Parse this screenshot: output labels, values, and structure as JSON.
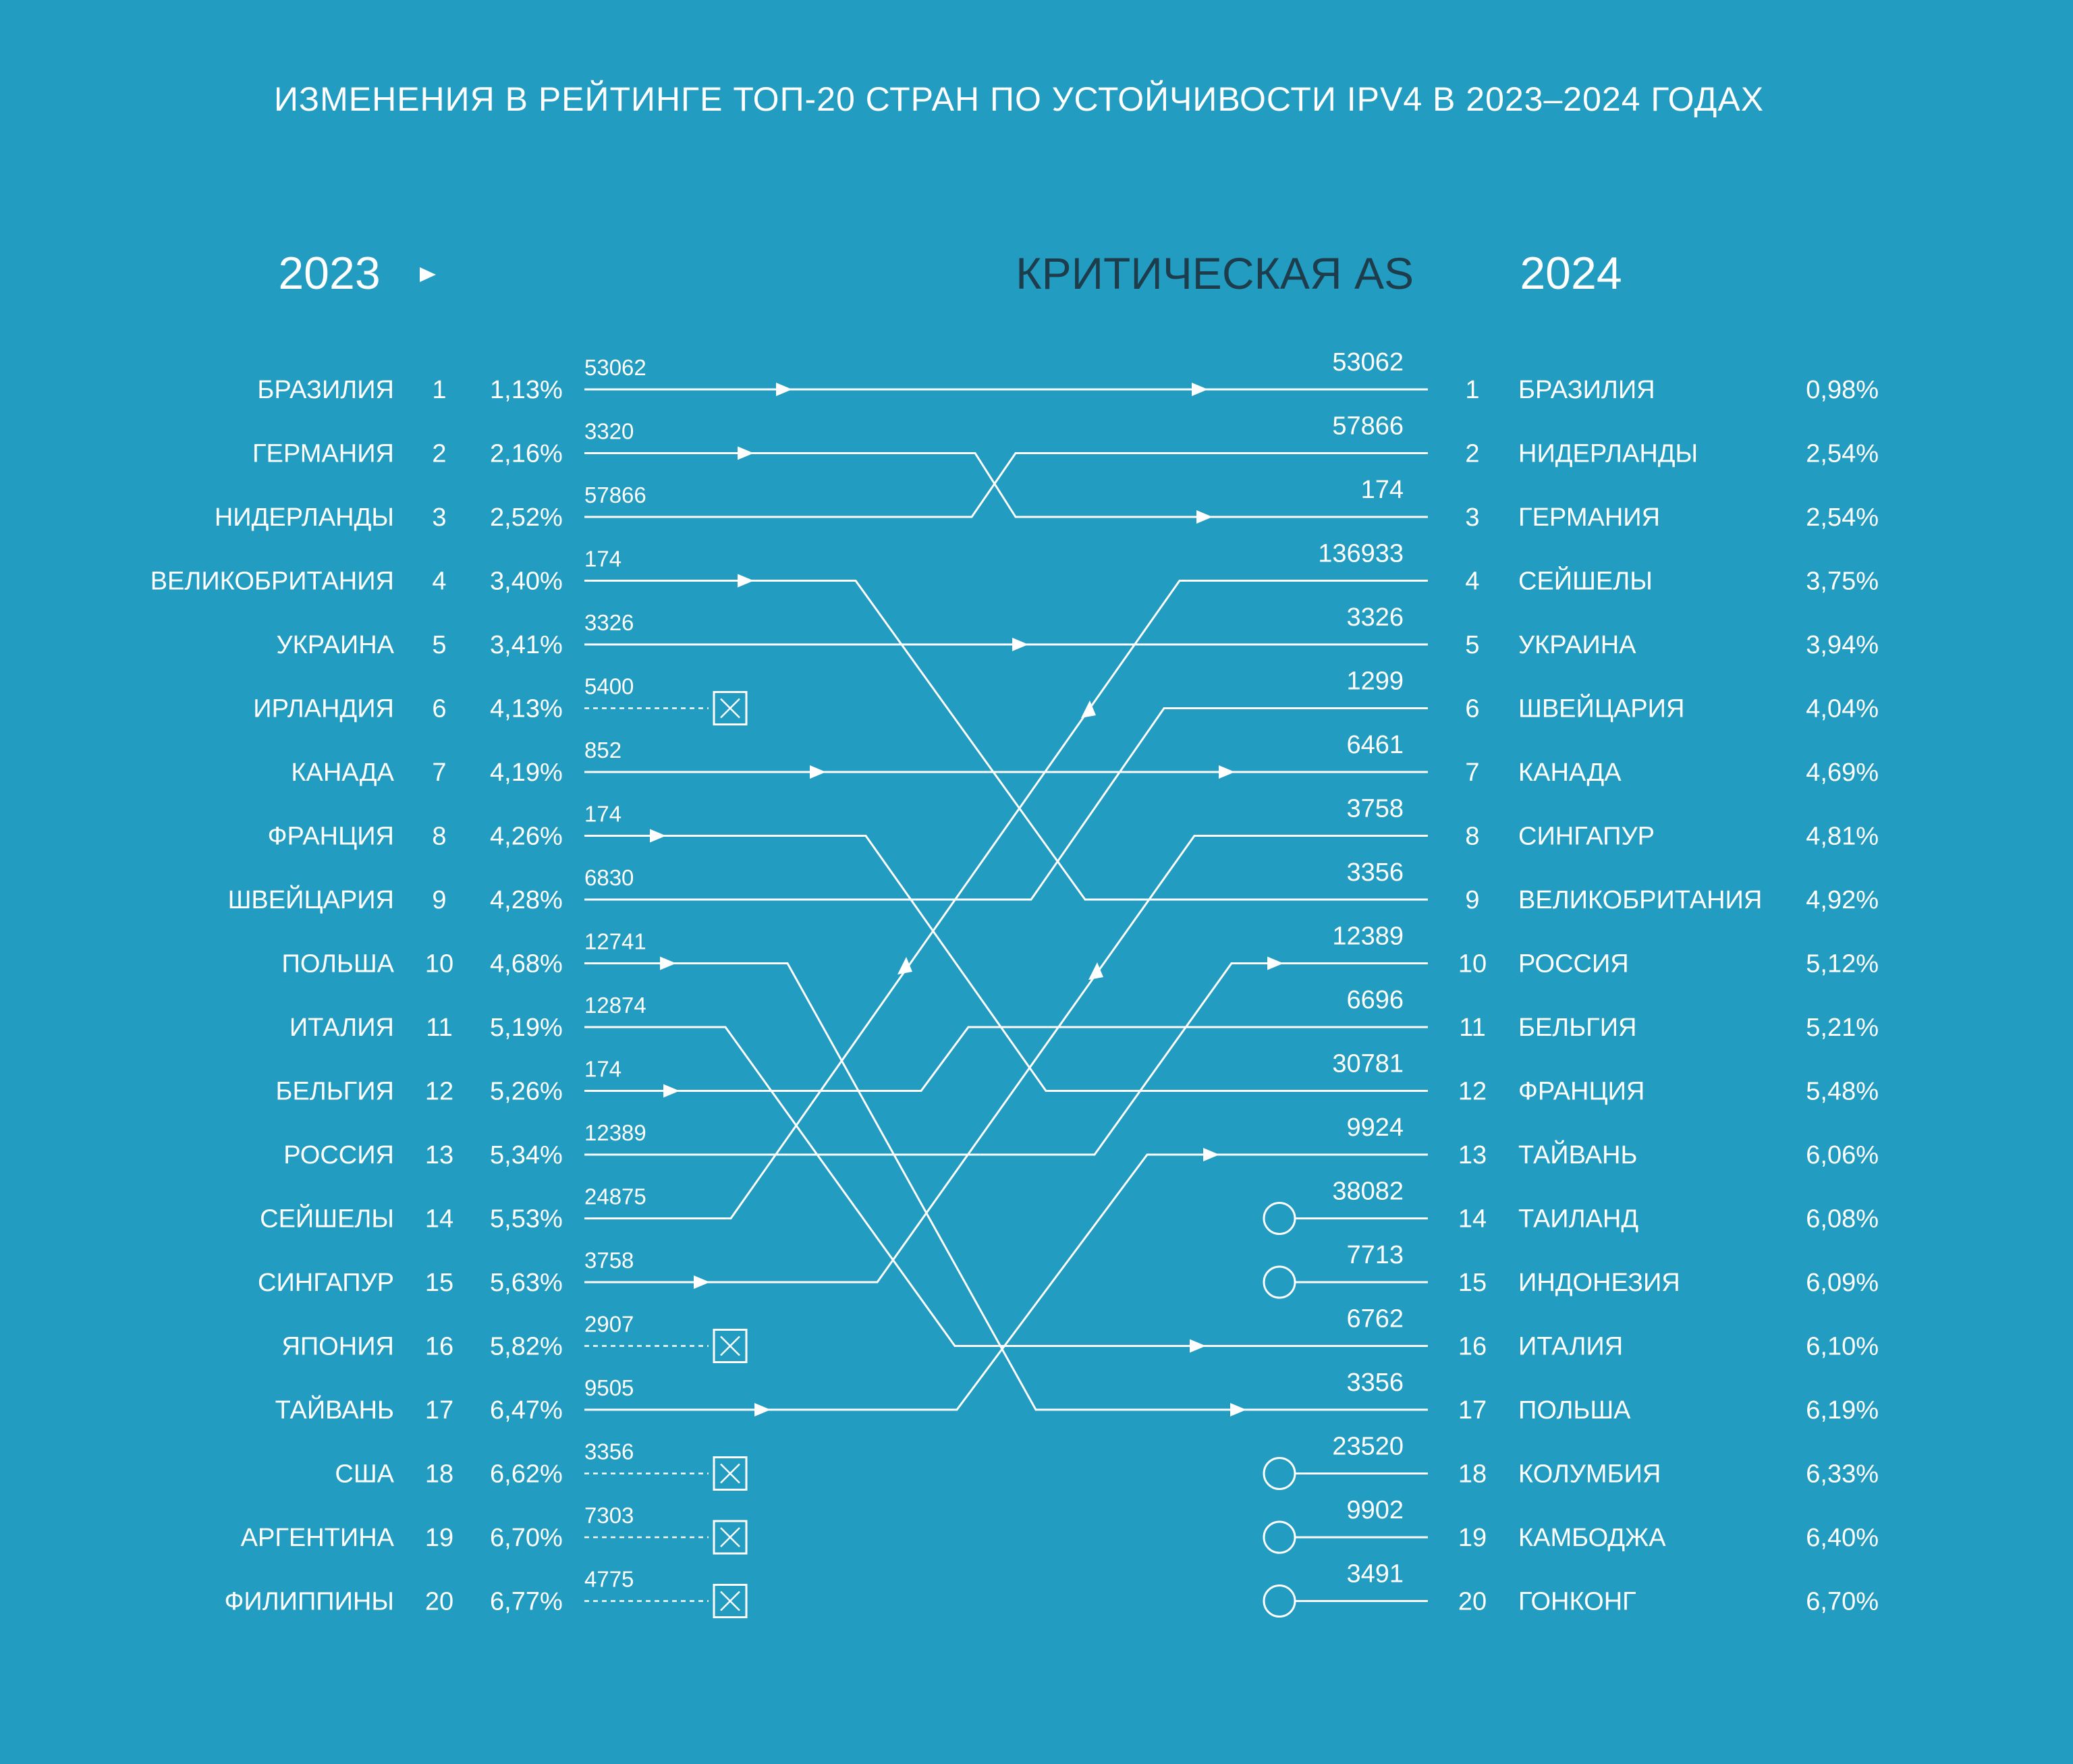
{
  "title": "ИЗМЕНЕНИЯ В РЕЙТИНГЕ ТОП-20 СТРАН ПО УСТОЙЧИВОСТИ IPV4 В 2023–2024 ГОДАХ",
  "header_left": "2023",
  "header_middle": "КРИТИЧЕСКАЯ AS",
  "header_right": "2024",
  "colors": {
    "background": "#229cc0",
    "foreground": "#ffffff",
    "dark_text": "#1d3d4c"
  },
  "chart_data": {
    "type": "bump",
    "title": "ИЗМЕНЕНИЯ В РЕЙТИНГЕ ТОП-20 СТРАН ПО УСТОЙЧИВОСТИ IPV4 В 2023–2024 ГОДАХ",
    "left_year": "2023",
    "right_year": "2024",
    "middle_label": "КРИТИЧЕСКАЯ AS",
    "ranking_2023": [
      {
        "rank": 1,
        "country": "БРАЗИЛИЯ",
        "pct": "1,13%",
        "as": "53062",
        "to": 1
      },
      {
        "rank": 2,
        "country": "ГЕРМАНИЯ",
        "pct": "2,16%",
        "as": "3320",
        "to": 3
      },
      {
        "rank": 3,
        "country": "НИДЕРЛАНДЫ",
        "pct": "2,52%",
        "as": "57866",
        "to": 2
      },
      {
        "rank": 4,
        "country": "ВЕЛИКОБРИТАНИЯ",
        "pct": "3,40%",
        "as": "174",
        "to": 9
      },
      {
        "rank": 5,
        "country": "УКРАИНА",
        "pct": "3,41%",
        "as": "3326",
        "to": 5
      },
      {
        "rank": 6,
        "country": "ИРЛАНДИЯ",
        "pct": "4,13%",
        "as": "5400",
        "to": null
      },
      {
        "rank": 7,
        "country": "КАНАДА",
        "pct": "4,19%",
        "as": "852",
        "to": 7
      },
      {
        "rank": 8,
        "country": "ФРАНЦИЯ",
        "pct": "4,26%",
        "as": "174",
        "to": 12
      },
      {
        "rank": 9,
        "country": "ШВЕЙЦАРИЯ",
        "pct": "4,28%",
        "as": "6830",
        "to": 6
      },
      {
        "rank": 10,
        "country": "ПОЛЬША",
        "pct": "4,68%",
        "as": "12741",
        "to": 17
      },
      {
        "rank": 11,
        "country": "ИТАЛИЯ",
        "pct": "5,19%",
        "as": "12874",
        "to": 16
      },
      {
        "rank": 12,
        "country": "БЕЛЬГИЯ",
        "pct": "5,26%",
        "as": "174",
        "to": 11
      },
      {
        "rank": 13,
        "country": "РОССИЯ",
        "pct": "5,34%",
        "as": "12389",
        "to": 10
      },
      {
        "rank": 14,
        "country": "СЕЙШЕЛЫ",
        "pct": "5,53%",
        "as": "24875",
        "to": 4
      },
      {
        "rank": 15,
        "country": "СИНГАПУР",
        "pct": "5,63%",
        "as": "3758",
        "to": 8
      },
      {
        "rank": 16,
        "country": "ЯПОНИЯ",
        "pct": "5,82%",
        "as": "2907",
        "to": null
      },
      {
        "rank": 17,
        "country": "ТАЙВАНЬ",
        "pct": "6,47%",
        "as": "9505",
        "to": 13
      },
      {
        "rank": 18,
        "country": "США",
        "pct": "6,62%",
        "as": "3356",
        "to": null
      },
      {
        "rank": 19,
        "country": "АРГЕНТИНА",
        "pct": "6,70%",
        "as": "7303",
        "to": null
      },
      {
        "rank": 20,
        "country": "ФИЛИППИНЫ",
        "pct": "6,77%",
        "as": "4775",
        "to": null
      }
    ],
    "ranking_2024": [
      {
        "rank": 1,
        "country": "БРАЗИЛИЯ",
        "pct": "0,98%",
        "as": "53062",
        "new": false
      },
      {
        "rank": 2,
        "country": "НИДЕРЛАНДЫ",
        "pct": "2,54%",
        "as": "57866",
        "new": false
      },
      {
        "rank": 3,
        "country": "ГЕРМАНИЯ",
        "pct": "2,54%",
        "as": "174",
        "new": false
      },
      {
        "rank": 4,
        "country": "СЕЙШЕЛЫ",
        "pct": "3,75%",
        "as": "136933",
        "new": false
      },
      {
        "rank": 5,
        "country": "УКРАИНА",
        "pct": "3,94%",
        "as": "3326",
        "new": false
      },
      {
        "rank": 6,
        "country": "ШВЕЙЦАРИЯ",
        "pct": "4,04%",
        "as": "1299",
        "new": false
      },
      {
        "rank": 7,
        "country": "КАНАДА",
        "pct": "4,69%",
        "as": "6461",
        "new": false
      },
      {
        "rank": 8,
        "country": "СИНГАПУР",
        "pct": "4,81%",
        "as": "3758",
        "new": false
      },
      {
        "rank": 9,
        "country": "ВЕЛИКОБРИТАНИЯ",
        "pct": "4,92%",
        "as": "3356",
        "new": false
      },
      {
        "rank": 10,
        "country": "РОССИЯ",
        "pct": "5,12%",
        "as": "12389",
        "new": false
      },
      {
        "rank": 11,
        "country": "БЕЛЬГИЯ",
        "pct": "5,21%",
        "as": "6696",
        "new": false
      },
      {
        "rank": 12,
        "country": "ФРАНЦИЯ",
        "pct": "5,48%",
        "as": "30781",
        "new": false
      },
      {
        "rank": 13,
        "country": "ТАЙВАНЬ",
        "pct": "6,06%",
        "as": "9924",
        "new": false
      },
      {
        "rank": 14,
        "country": "ТАИЛАНД",
        "pct": "6,08%",
        "as": "38082",
        "new": true
      },
      {
        "rank": 15,
        "country": "ИНДОНЕЗИЯ",
        "pct": "6,09%",
        "as": "7713",
        "new": true
      },
      {
        "rank": 16,
        "country": "ИТАЛИЯ",
        "pct": "6,10%",
        "as": "6762",
        "new": false
      },
      {
        "rank": 17,
        "country": "ПОЛЬША",
        "pct": "6,19%",
        "as": "3356",
        "new": false
      },
      {
        "rank": 18,
        "country": "КОЛУМБИЯ",
        "pct": "6,33%",
        "as": "23520",
        "new": true
      },
      {
        "rank": 19,
        "country": "КАМБОДЖА",
        "pct": "6,40%",
        "as": "9902",
        "new": true
      },
      {
        "rank": 20,
        "country": "ГОНКОНГ",
        "pct": "6,70%",
        "as": "3491",
        "new": true
      }
    ]
  }
}
